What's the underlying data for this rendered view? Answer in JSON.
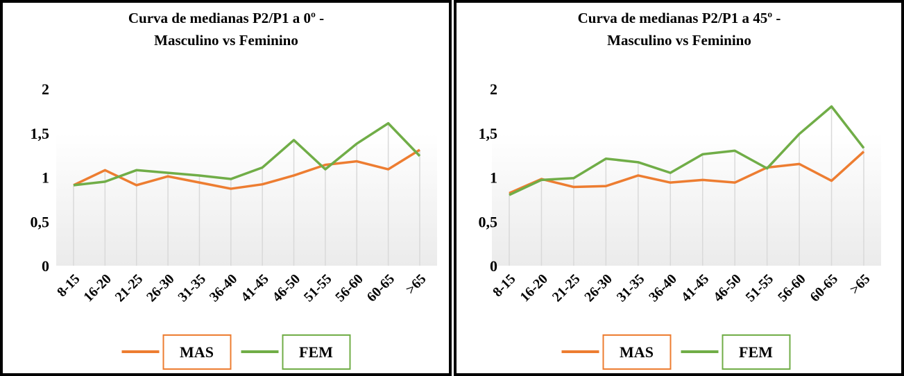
{
  "chart_data": [
    {
      "type": "line",
      "title": "Curva de medianas P2/P1 a 0º - Masculino vs Feminino",
      "categories": [
        "8-15",
        "16-20",
        "21-25",
        "26-30",
        "31-35",
        "36-40",
        "41-45",
        "46-50",
        "51-55",
        "56-60",
        "60-65",
        ">65"
      ],
      "series": [
        {
          "name": "MAS",
          "color": "#ed7d31",
          "values": [
            0.91,
            1.08,
            0.91,
            1.01,
            0.94,
            0.87,
            0.92,
            1.02,
            1.14,
            1.18,
            1.09,
            1.31
          ]
        },
        {
          "name": "FEM",
          "color": "#70ad47",
          "values": [
            0.91,
            0.95,
            1.08,
            1.05,
            1.02,
            0.98,
            1.11,
            1.42,
            1.09,
            1.38,
            1.61,
            1.24
          ]
        }
      ],
      "ylim": [
        0,
        2
      ],
      "yticks": [
        0,
        {
          "value": 0.5,
          "label": "0,5"
        },
        1,
        {
          "value": 1.5,
          "label": "1,5"
        },
        2
      ]
    },
    {
      "type": "line",
      "title": "Curva de medianas P2/P1 a 45º - Masculino vs Feminino",
      "categories": [
        "8-15",
        "16-20",
        "21-25",
        "26-30",
        "31-35",
        "36-40",
        "41-45",
        "46-50",
        "51-55",
        "56-60",
        "60-65",
        ">65"
      ],
      "series": [
        {
          "name": "MAS",
          "color": "#ed7d31",
          "values": [
            0.82,
            0.98,
            0.89,
            0.9,
            1.02,
            0.94,
            0.97,
            0.94,
            1.11,
            1.15,
            0.96,
            1.29
          ]
        },
        {
          "name": "FEM",
          "color": "#70ad47",
          "values": [
            0.8,
            0.97,
            0.99,
            1.21,
            1.17,
            1.05,
            1.26,
            1.3,
            1.1,
            1.49,
            1.8,
            1.33
          ]
        }
      ],
      "ylim": [
        0,
        2
      ],
      "yticks": [
        0,
        {
          "value": 0.5,
          "label": "0,5"
        },
        1,
        {
          "value": 1.5,
          "label": "1,5"
        },
        2
      ]
    }
  ]
}
